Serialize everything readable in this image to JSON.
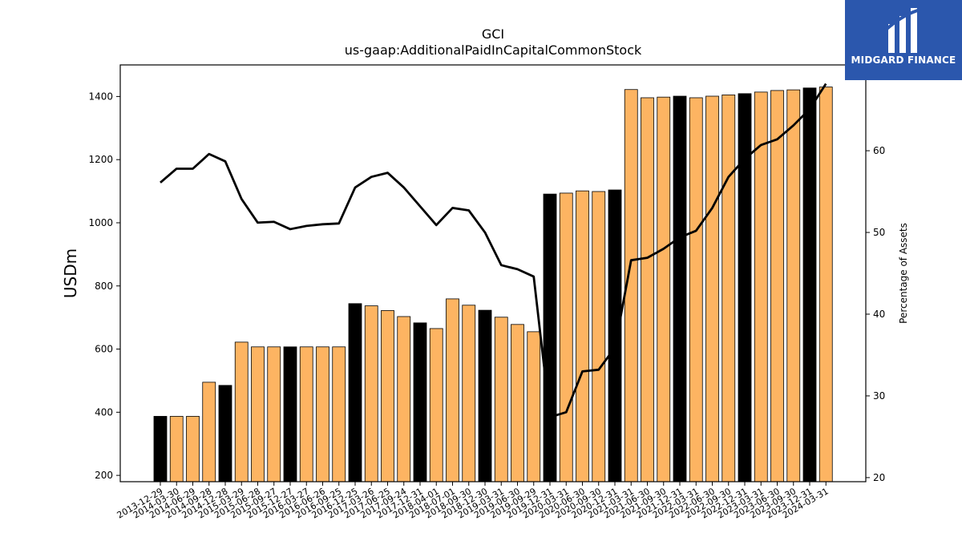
{
  "chart_data": {
    "type": "bar",
    "title": "GCI",
    "subtitle": "us-gaap:AdditionalPaidInCapitalCommonStock",
    "ylabel": "USDm",
    "y2label": "Percentage of Assets",
    "ylim": [
      180,
      1500
    ],
    "y2lim": [
      19.5,
      70.5
    ],
    "yticks": [
      200,
      400,
      600,
      800,
      1000,
      1200,
      1400
    ],
    "y2ticks": [
      20,
      30,
      40,
      50,
      60
    ],
    "categories": [
      "2013-12-29",
      "2014-03-30",
      "2014-06-29",
      "2014-09-28",
      "2014-12-28",
      "2015-03-29",
      "2015-06-28",
      "2015-09-27",
      "2015-12-27",
      "2016-03-27",
      "2016-06-26",
      "2016-09-25",
      "2016-12-25",
      "2017-03-26",
      "2017-06-25",
      "2017-09-24",
      "2017-12-31",
      "2018-04-01",
      "2018-07-01",
      "2018-09-30",
      "2018-12-30",
      "2019-03-31",
      "2019-06-30",
      "2019-09-29",
      "2019-12-31",
      "2020-03-31",
      "2020-06-30",
      "2020-09-30",
      "2020-12-31",
      "2021-03-31",
      "2021-06-30",
      "2021-09-30",
      "2021-12-31",
      "2022-03-31",
      "2022-06-30",
      "2022-09-30",
      "2022-12-31",
      "2023-03-31",
      "2023-06-30",
      "2023-09-30",
      "2023-12-31",
      "2024-03-31"
    ],
    "series": [
      {
        "type": "bar",
        "values": [
          387,
          387,
          387,
          495,
          485,
          622,
          607,
          607,
          607,
          607,
          607,
          607,
          744,
          737,
          722,
          703,
          683,
          665,
          759,
          739,
          723,
          701,
          678,
          655,
          1091,
          1094,
          1101,
          1099,
          1104,
          1422,
          1396,
          1398,
          1401,
          1396,
          1401,
          1405,
          1409,
          1414,
          1419,
          1421,
          1427,
          1430
        ],
        "highlight": [
          true,
          false,
          false,
          false,
          true,
          false,
          false,
          false,
          true,
          false,
          false,
          false,
          true,
          false,
          false,
          false,
          true,
          false,
          false,
          false,
          true,
          false,
          false,
          false,
          true,
          false,
          false,
          false,
          true,
          false,
          false,
          false,
          true,
          false,
          false,
          false,
          true,
          false,
          false,
          false,
          true,
          false
        ],
        "color": "#fdb462",
        "highlight_color": "#000000"
      },
      {
        "type": "line",
        "axis": "right",
        "values": [
          56.1,
          57.8,
          57.8,
          59.6,
          58.7,
          54.1,
          51.2,
          51.3,
          50.4,
          50.8,
          51.0,
          51.1,
          55.5,
          56.8,
          57.3,
          55.5,
          53.2,
          50.9,
          53.0,
          52.7,
          50.0,
          46.0,
          45.5,
          44.6,
          27.4,
          28.0,
          33.0,
          33.2,
          35.9,
          46.6,
          46.9,
          48.0,
          49.4,
          50.2,
          53.0,
          56.8,
          59.0,
          60.7,
          61.4,
          63.1,
          65.1,
          68.2
        ],
        "color": "#000000"
      }
    ],
    "legend": "none",
    "grid": false
  },
  "logo": {
    "text": "MIDGARD FINANCE",
    "icon": "midgard-logo-icon",
    "background": "#2b57ad"
  }
}
